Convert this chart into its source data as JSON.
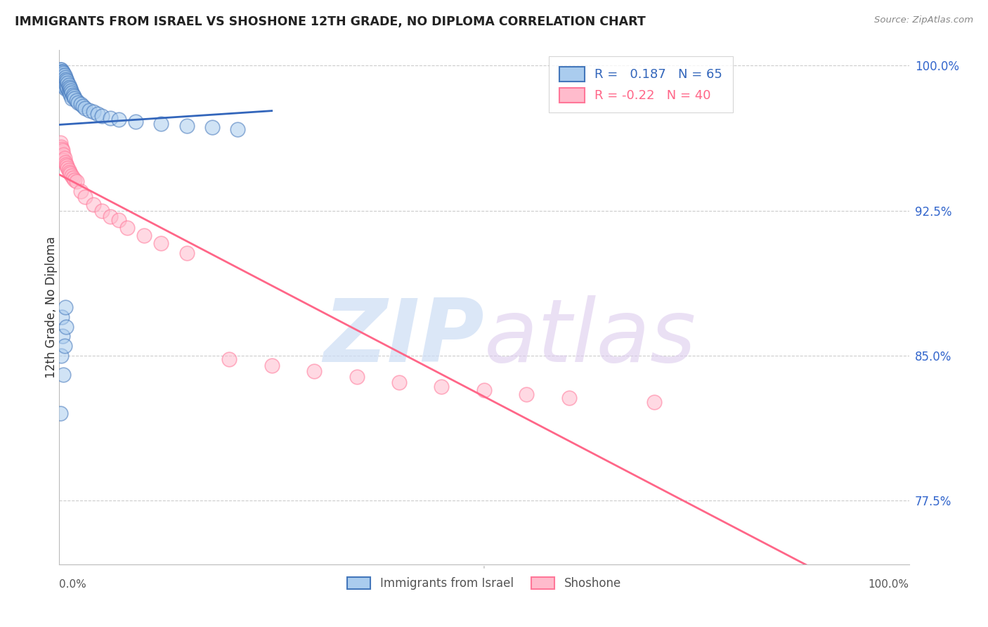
{
  "title": "IMMIGRANTS FROM ISRAEL VS SHOSHONE 12TH GRADE, NO DIPLOMA CORRELATION CHART",
  "source": "Source: ZipAtlas.com",
  "ylabel": "12th Grade, No Diploma",
  "R1": 0.187,
  "N1": 65,
  "R2": -0.22,
  "N2": 40,
  "color_blue_face": "#AACCEE",
  "color_blue_edge": "#4477BB",
  "color_pink_face": "#FFBBCC",
  "color_pink_edge": "#FF7799",
  "line_color_blue": "#3366BB",
  "line_color_pink": "#FF6688",
  "legend_label1": "Immigrants from Israel",
  "legend_label2": "Shoshone",
  "xmin": 0.0,
  "xmax": 1.0,
  "ymin": 0.742,
  "ymax": 1.008,
  "ytick_vals": [
    1.0,
    0.925,
    0.85,
    0.775
  ],
  "ytick_labels": [
    "100.0%",
    "92.5%",
    "85.0%",
    "77.5%"
  ],
  "blue_x": [
    0.001,
    0.001,
    0.002,
    0.002,
    0.002,
    0.002,
    0.003,
    0.003,
    0.003,
    0.003,
    0.004,
    0.004,
    0.004,
    0.004,
    0.005,
    0.005,
    0.005,
    0.006,
    0.006,
    0.006,
    0.007,
    0.007,
    0.007,
    0.008,
    0.008,
    0.009,
    0.009,
    0.01,
    0.01,
    0.011,
    0.011,
    0.012,
    0.012,
    0.013,
    0.013,
    0.014,
    0.015,
    0.015,
    0.016,
    0.017,
    0.018,
    0.02,
    0.022,
    0.025,
    0.028,
    0.03,
    0.035,
    0.04,
    0.045,
    0.05,
    0.06,
    0.07,
    0.09,
    0.12,
    0.15,
    0.18,
    0.21,
    0.001,
    0.002,
    0.003,
    0.004,
    0.005,
    0.006,
    0.007,
    0.008
  ],
  "blue_y": [
    0.998,
    0.997,
    0.998,
    0.996,
    0.994,
    0.993,
    0.997,
    0.995,
    0.993,
    0.991,
    0.997,
    0.995,
    0.992,
    0.99,
    0.996,
    0.993,
    0.99,
    0.995,
    0.992,
    0.989,
    0.994,
    0.991,
    0.988,
    0.993,
    0.99,
    0.992,
    0.989,
    0.991,
    0.988,
    0.99,
    0.987,
    0.989,
    0.986,
    0.988,
    0.985,
    0.987,
    0.986,
    0.983,
    0.985,
    0.984,
    0.983,
    0.982,
    0.981,
    0.98,
    0.979,
    0.978,
    0.977,
    0.976,
    0.975,
    0.974,
    0.973,
    0.972,
    0.971,
    0.97,
    0.969,
    0.968,
    0.967,
    0.82,
    0.85,
    0.87,
    0.86,
    0.84,
    0.855,
    0.875,
    0.865
  ],
  "pink_x": [
    0.001,
    0.002,
    0.002,
    0.003,
    0.003,
    0.004,
    0.005,
    0.005,
    0.006,
    0.007,
    0.008,
    0.009,
    0.01,
    0.011,
    0.012,
    0.013,
    0.015,
    0.016,
    0.018,
    0.02,
    0.025,
    0.03,
    0.04,
    0.05,
    0.06,
    0.07,
    0.08,
    0.1,
    0.12,
    0.15,
    0.2,
    0.25,
    0.3,
    0.35,
    0.4,
    0.45,
    0.5,
    0.55,
    0.6,
    0.7
  ],
  "pink_y": [
    0.96,
    0.958,
    0.955,
    0.957,
    0.953,
    0.956,
    0.954,
    0.951,
    0.952,
    0.95,
    0.949,
    0.948,
    0.947,
    0.946,
    0.945,
    0.944,
    0.943,
    0.942,
    0.941,
    0.94,
    0.935,
    0.932,
    0.928,
    0.925,
    0.922,
    0.92,
    0.916,
    0.912,
    0.908,
    0.903,
    0.848,
    0.845,
    0.842,
    0.839,
    0.836,
    0.834,
    0.832,
    0.83,
    0.828,
    0.826
  ]
}
